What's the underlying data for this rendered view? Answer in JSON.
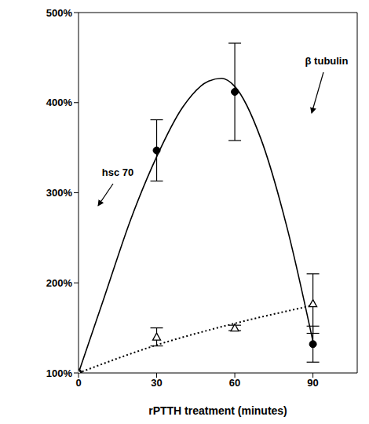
{
  "chart_data": {
    "type": "scatter",
    "x_label": "rPTTH treatment (minutes)",
    "xlim": [
      0,
      107
    ],
    "xticks": [
      0,
      30,
      60,
      90
    ],
    "ylim": [
      100,
      500
    ],
    "yticks": [
      {
        "value": 100,
        "label": "100%"
      },
      {
        "value": 200,
        "label": "200%"
      },
      {
        "value": 300,
        "label": "300%"
      },
      {
        "value": 400,
        "label": "400%"
      },
      {
        "value": 500,
        "label": "500%"
      }
    ],
    "grid": false,
    "series": [
      {
        "name": "β tubulin",
        "color": "#000000",
        "marker": "circle",
        "line_style": "solid",
        "x": [
          0,
          30,
          60,
          90
        ],
        "values": [
          100,
          347,
          412,
          132
        ],
        "errors": [
          0,
          34,
          54,
          20
        ],
        "curve_x": [
          0,
          10,
          20,
          30,
          40,
          50,
          55,
          60,
          70,
          80,
          90
        ],
        "curve_values": [
          100,
          185,
          270,
          340,
          395,
          424,
          427,
          418,
          360,
          262,
          135
        ]
      },
      {
        "name": "hsc 70",
        "color": "#000000",
        "marker": "triangle",
        "line_style": "dotted",
        "x": [
          0,
          30,
          60,
          90
        ],
        "values": [
          100,
          140,
          150,
          177
        ],
        "errors": [
          0,
          10,
          3,
          33
        ],
        "curve_x": [
          0,
          30,
          60,
          90
        ],
        "curve_values": [
          100,
          131,
          155,
          175
        ]
      }
    ]
  }
}
